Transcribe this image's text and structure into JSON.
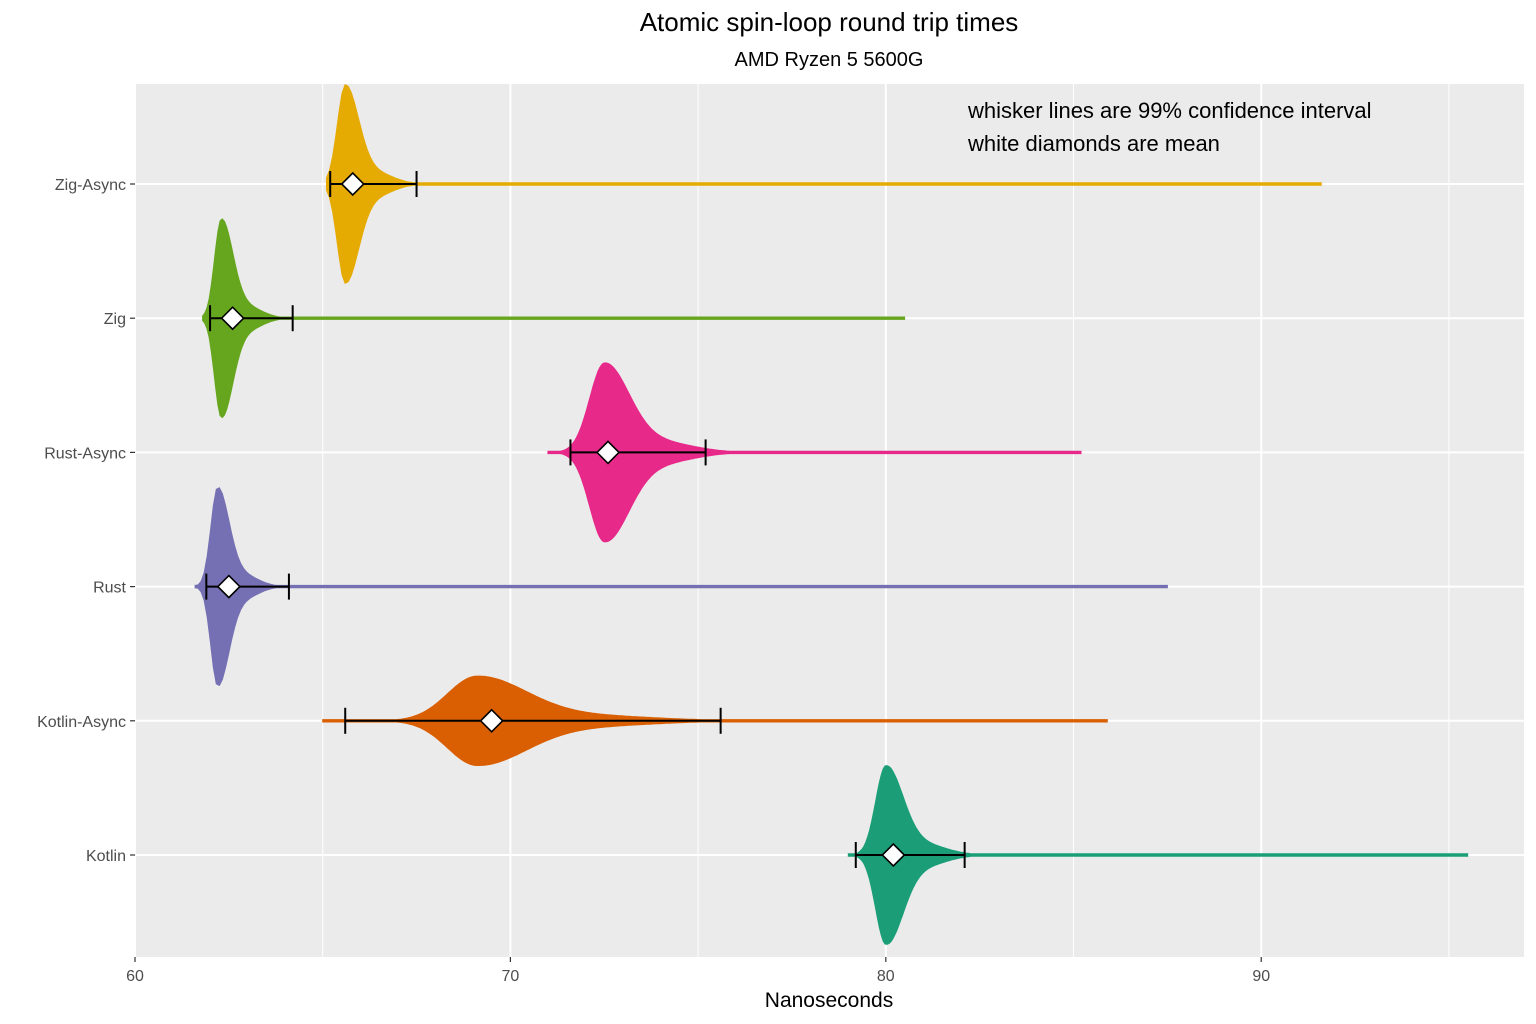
{
  "chart_data": {
    "type": "violin",
    "title": "Atomic spin-loop round trip times",
    "subtitle": "AMD Ryzen 5 5600G",
    "xlabel": "Nanoseconds",
    "ylabel": "",
    "xlim": [
      60,
      97
    ],
    "x_ticks": [
      60,
      70,
      80,
      90
    ],
    "grid": true,
    "annotations": [
      "whisker lines are 99% confidence interval",
      "white diamonds are mean"
    ],
    "categories": [
      "Zig-Async",
      "Zig",
      "Rust-Async",
      "Rust",
      "Kotlin-Async",
      "Kotlin"
    ],
    "series": [
      {
        "name": "Zig-Async",
        "color": "#E6AB02",
        "min": 65.1,
        "max": 91.6,
        "mode": 65.6,
        "mean": 65.8,
        "ci_low": 65.2,
        "ci_high": 67.5,
        "spread": 0.35,
        "peak_rel": 1.0
      },
      {
        "name": "Zig",
        "color": "#66A61E",
        "min": 61.8,
        "max": 80.5,
        "mode": 62.3,
        "mean": 62.6,
        "ci_low": 62.0,
        "ci_high": 64.2,
        "spread": 0.3,
        "peak_rel": 1.0
      },
      {
        "name": "Rust-Async",
        "color": "#E7298A",
        "min": 71.0,
        "max": 85.2,
        "mode": 72.5,
        "mean": 72.6,
        "ci_low": 71.6,
        "ci_high": 75.2,
        "spread": 0.65,
        "peak_rel": 0.9
      },
      {
        "name": "Rust",
        "color": "#7570B3",
        "min": 61.6,
        "max": 87.5,
        "mode": 62.2,
        "mean": 62.5,
        "ci_low": 61.9,
        "ci_high": 64.1,
        "spread": 0.3,
        "peak_rel": 1.0
      },
      {
        "name": "Kotlin-Async",
        "color": "#D95F02",
        "min": 65.0,
        "max": 85.9,
        "mode": 69.1,
        "mean": 69.5,
        "ci_low": 65.6,
        "ci_high": 75.6,
        "spread": 1.3,
        "peak_rel": 0.45
      },
      {
        "name": "Kotlin",
        "color": "#1B9E77",
        "min": 79.0,
        "max": 95.5,
        "mode": 80.0,
        "mean": 80.2,
        "ci_low": 79.2,
        "ci_high": 82.1,
        "spread": 0.45,
        "peak_rel": 0.9
      }
    ]
  }
}
